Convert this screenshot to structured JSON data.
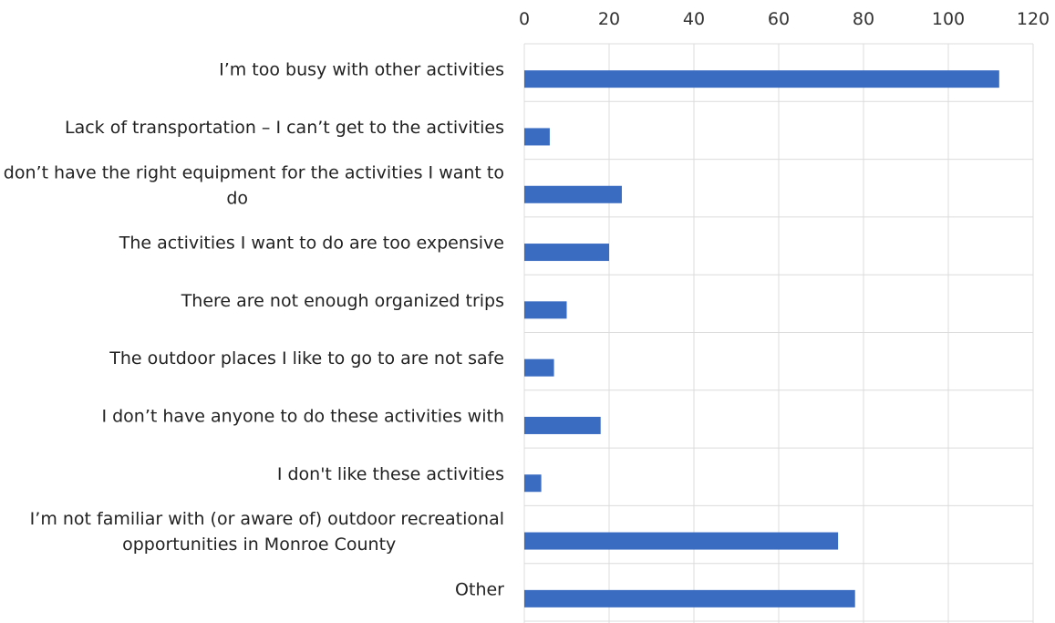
{
  "chart_data": {
    "type": "bar",
    "orientation": "horizontal",
    "categories": [
      "I’m too busy with other activities",
      "Lack of transportation – I can’t get to the activities",
      "I don’t have the right equipment for the activities I want to do",
      "The activities I want to do are too expensive",
      "There are not enough organized trips",
      "The outdoor places I like to go to are not safe",
      "I don’t have anyone to do these activities with",
      "I don't like these activities",
      "I’m not familiar with (or aware of) outdoor recreational opportunities in Monroe County",
      "Other"
    ],
    "category_lines": [
      [
        "I’m too busy with other activities"
      ],
      [
        "Lack of transportation – I can’t get to the activities"
      ],
      [
        "I don’t have the right equipment for the activities I want to",
        "do"
      ],
      [
        "The activities I want to do are too expensive"
      ],
      [
        "There are not enough organized trips"
      ],
      [
        "The outdoor places I like to go to are not safe"
      ],
      [
        "I don’t have anyone to do these activities with"
      ],
      [
        "I don't like these activities"
      ],
      [
        "I’m not familiar with (or aware of) outdoor recreational",
        "opportunities in Monroe County"
      ],
      [
        "Other"
      ]
    ],
    "values": [
      112,
      6,
      23,
      20,
      10,
      7,
      18,
      4,
      74,
      78
    ],
    "xlim": [
      0,
      120
    ],
    "xticks": [
      0,
      20,
      40,
      60,
      80,
      100,
      120
    ],
    "x_axis_position": "top",
    "grid": true,
    "bar_color": "#3a6cc2",
    "title": "",
    "xlabel": "",
    "ylabel": ""
  }
}
